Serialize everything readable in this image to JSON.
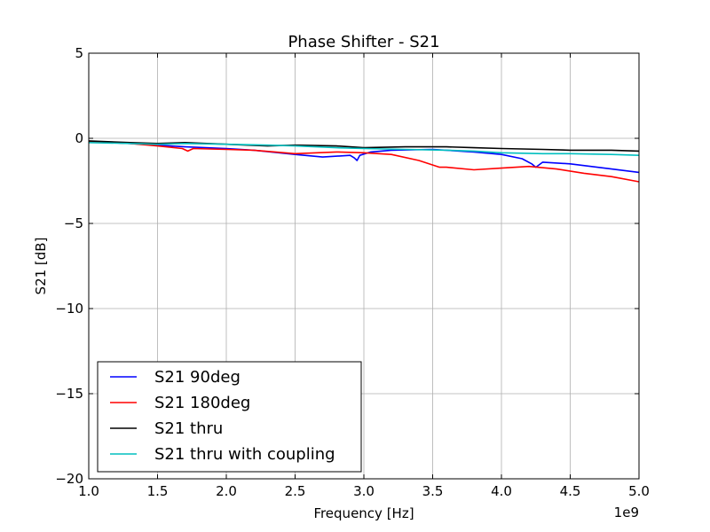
{
  "chart_data": {
    "type": "line",
    "title": "Phase Shifter - S21",
    "xlabel": "Frequency [Hz]",
    "ylabel": "S21 [dB]",
    "x_offset_label": "1e9",
    "xlim": [
      1.0,
      5.0
    ],
    "ylim": [
      -20,
      5
    ],
    "xticks": [
      1.0,
      1.5,
      2.0,
      2.5,
      3.0,
      3.5,
      4.0,
      4.5,
      5.0
    ],
    "xtick_labels": [
      "1.0",
      "1.5",
      "2.0",
      "2.5",
      "3.0",
      "3.5",
      "4.0",
      "4.5",
      "5.0"
    ],
    "yticks": [
      5,
      0,
      -5,
      -10,
      -15,
      -20
    ],
    "ytick_labels": [
      "5",
      "0",
      "−5",
      "−10",
      "−15",
      "−20"
    ],
    "grid": true,
    "legend_position": "bottom-left",
    "series": [
      {
        "name": "S21 90deg",
        "color": "#0000ff",
        "x": [
          1.0,
          1.3,
          1.5,
          1.7,
          2.0,
          2.2,
          2.5,
          2.7,
          2.9,
          2.93,
          2.95,
          2.97,
          3.05,
          3.2,
          3.5,
          3.8,
          4.0,
          4.15,
          4.22,
          4.25,
          4.3,
          4.5,
          4.8,
          5.0
        ],
        "y": [
          -0.2,
          -0.3,
          -0.4,
          -0.5,
          -0.6,
          -0.7,
          -0.95,
          -1.1,
          -1.0,
          -1.15,
          -1.3,
          -1.0,
          -0.8,
          -0.7,
          -0.65,
          -0.8,
          -0.95,
          -1.2,
          -1.5,
          -1.7,
          -1.4,
          -1.5,
          -1.8,
          -2.0
        ]
      },
      {
        "name": "S21 180deg",
        "color": "#ff0000",
        "x": [
          1.0,
          1.3,
          1.5,
          1.68,
          1.72,
          1.76,
          2.0,
          2.2,
          2.5,
          2.8,
          3.0,
          3.2,
          3.4,
          3.55,
          3.6,
          3.8,
          4.0,
          4.2,
          4.4,
          4.6,
          4.8,
          5.0
        ],
        "y": [
          -0.2,
          -0.3,
          -0.45,
          -0.6,
          -0.75,
          -0.6,
          -0.65,
          -0.7,
          -0.9,
          -0.8,
          -0.85,
          -0.95,
          -1.3,
          -1.7,
          -1.7,
          -1.85,
          -1.75,
          -1.65,
          -1.8,
          -2.05,
          -2.25,
          -2.55
        ]
      },
      {
        "name": "S21 thru",
        "color": "#000000",
        "x": [
          1.0,
          1.3,
          1.5,
          1.7,
          2.0,
          2.3,
          2.5,
          2.8,
          3.0,
          3.3,
          3.6,
          3.8,
          4.0,
          4.3,
          4.5,
          4.8,
          5.0
        ],
        "y": [
          -0.15,
          -0.25,
          -0.3,
          -0.25,
          -0.35,
          -0.45,
          -0.4,
          -0.45,
          -0.55,
          -0.5,
          -0.5,
          -0.55,
          -0.6,
          -0.65,
          -0.7,
          -0.7,
          -0.75
        ]
      },
      {
        "name": "S21 thru with coupling",
        "color": "#00bfbf",
        "x": [
          1.0,
          1.3,
          1.5,
          1.7,
          2.0,
          2.3,
          2.5,
          2.8,
          3.0,
          3.3,
          3.6,
          3.8,
          4.0,
          4.3,
          4.5,
          4.8,
          5.0
        ],
        "y": [
          -0.25,
          -0.3,
          -0.35,
          -0.3,
          -0.35,
          -0.4,
          -0.45,
          -0.55,
          -0.6,
          -0.65,
          -0.7,
          -0.75,
          -0.85,
          -0.9,
          -0.9,
          -0.95,
          -1.0
        ]
      }
    ]
  }
}
